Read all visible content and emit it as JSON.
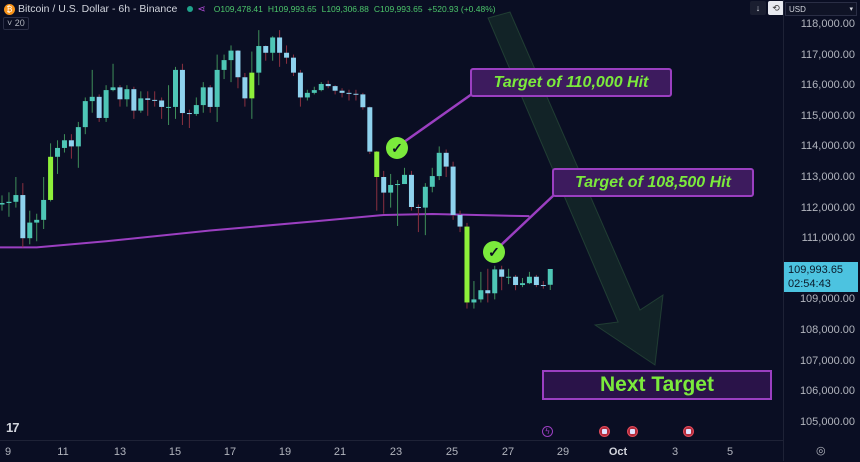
{
  "header": {
    "title": "Bitcoin / U.S. Dollar - 6h - Binance",
    "open_label": "O",
    "open": "109,478.41",
    "high_label": "H",
    "high": "109,993.65",
    "low_label": "L",
    "low": "109,306.88",
    "close_label": "C",
    "close": "109,993.65",
    "change": "+520.93 (+0.48%)",
    "indicator_count": "20"
  },
  "toolbar": {
    "currency": "USD",
    "down_icon": "↓",
    "sync_icon": "⟲"
  },
  "price_axis": {
    "labels": [
      "118,000.00",
      "117,000.00",
      "116,000.00",
      "115,000.00",
      "114,000.00",
      "113,000.00",
      "112,000.00",
      "111,000.00",
      "109,000.00",
      "108,000.00",
      "107,000.00",
      "106,000.00",
      "105,000.00"
    ],
    "current_price": "109,993.65",
    "countdown": "02:54:43"
  },
  "time_axis": {
    "labels": [
      "9",
      "11",
      "13",
      "15",
      "17",
      "19",
      "21",
      "23",
      "25",
      "27",
      "29",
      "Oct",
      "3",
      "5"
    ]
  },
  "annotations": {
    "target1": "Target of 110,000 Hit",
    "target2": "Target of 108,500 Hit",
    "next": "Next Target"
  },
  "colors": {
    "up": "#4ec6b6",
    "down": "#8fd2ee",
    "highlight": "#8ef03a",
    "ma": "#9b3fc1",
    "accent": "#7bea3c",
    "price_tag": "#4cc3e0"
  },
  "chart_data": {
    "type": "candlestick",
    "symbol": "BTC/USD",
    "interval": "6h",
    "ylim": [
      104500,
      118500
    ],
    "y_ticks": [
      118000,
      117000,
      116000,
      115000,
      114000,
      113000,
      112000,
      111000,
      109000,
      108000,
      107000,
      106000,
      105000
    ],
    "highlighted": [
      7,
      36,
      54,
      67
    ],
    "candles": [
      [
        112100,
        112400,
        111900,
        112150
      ],
      [
        112150,
        112500,
        111700,
        112190
      ],
      [
        112190,
        113000,
        112000,
        112410
      ],
      [
        112410,
        112800,
        110700,
        111000
      ],
      [
        111000,
        111900,
        110800,
        111510
      ],
      [
        111510,
        111800,
        110900,
        111600
      ],
      [
        111600,
        113000,
        111300,
        112250
      ],
      [
        112250,
        114100,
        112200,
        113660
      ],
      [
        113660,
        114200,
        113100,
        113950
      ],
      [
        113950,
        114400,
        113800,
        114200
      ],
      [
        114200,
        114400,
        113600,
        114000
      ],
      [
        114000,
        114800,
        113300,
        114630
      ],
      [
        114630,
        115600,
        114400,
        115480
      ],
      [
        115480,
        116500,
        115100,
        115620
      ],
      [
        115620,
        115700,
        114800,
        114930
      ],
      [
        114930,
        116000,
        114800,
        115840
      ],
      [
        115840,
        116700,
        115800,
        115930
      ],
      [
        115930,
        116000,
        115300,
        115540
      ],
      [
        115540,
        116000,
        115300,
        115870
      ],
      [
        115870,
        115950,
        114900,
        115170
      ],
      [
        115170,
        115800,
        115100,
        115570
      ],
      [
        115570,
        115800,
        115000,
        115520
      ],
      [
        115520,
        115800,
        115300,
        115500
      ],
      [
        115500,
        115600,
        114900,
        115290
      ],
      [
        115290,
        116000,
        114700,
        115290
      ],
      [
        115290,
        116600,
        114900,
        116500
      ],
      [
        116500,
        116700,
        114700,
        115090
      ],
      [
        115090,
        115200,
        114600,
        115060
      ],
      [
        115060,
        115600,
        115000,
        115350
      ],
      [
        115350,
        116100,
        115100,
        115930
      ],
      [
        115930,
        116000,
        115100,
        115290
      ],
      [
        115290,
        117000,
        114800,
        116500
      ],
      [
        116500,
        117000,
        116200,
        116820
      ],
      [
        116820,
        117300,
        116100,
        117130
      ],
      [
        117130,
        117150,
        115900,
        116260
      ],
      [
        116260,
        116400,
        115300,
        115570
      ],
      [
        115570,
        117100,
        114900,
        116410
      ],
      [
        116410,
        117800,
        116000,
        117280
      ],
      [
        117280,
        117300,
        116800,
        117060
      ],
      [
        117060,
        117600,
        116800,
        117560
      ],
      [
        117560,
        117800,
        116600,
        117060
      ],
      [
        117060,
        117300,
        116700,
        116900
      ],
      [
        116900,
        117000,
        116300,
        116410
      ],
      [
        116410,
        116500,
        115300,
        115600
      ],
      [
        115600,
        115850,
        115500,
        115750
      ],
      [
        115750,
        115950,
        115700,
        115840
      ],
      [
        115840,
        116100,
        115800,
        116040
      ],
      [
        116040,
        116150,
        115900,
        115970
      ],
      [
        115970,
        116000,
        115700,
        115820
      ],
      [
        115820,
        115900,
        115600,
        115750
      ],
      [
        115750,
        115850,
        115500,
        115720
      ],
      [
        115720,
        115850,
        115500,
        115700
      ],
      [
        115700,
        115750,
        115200,
        115280
      ],
      [
        115280,
        115300,
        113750,
        113830
      ],
      [
        113830,
        113850,
        111900,
        113000
      ],
      [
        113000,
        113200,
        111800,
        112490
      ],
      [
        112490,
        113100,
        112000,
        112740
      ],
      [
        112740,
        112900,
        111400,
        112770
      ],
      [
        112770,
        113300,
        112800,
        113070
      ],
      [
        113070,
        113200,
        111900,
        112020
      ],
      [
        112020,
        112100,
        111200,
        112000
      ],
      [
        112000,
        112800,
        111100,
        112680
      ],
      [
        112680,
        113300,
        112500,
        113030
      ],
      [
        113030,
        114000,
        112900,
        113790
      ],
      [
        113790,
        113900,
        113000,
        113340
      ],
      [
        113340,
        113500,
        111600,
        111760
      ],
      [
        111760,
        111900,
        111200,
        111380
      ],
      [
        111380,
        111500,
        108700,
        108900
      ],
      [
        108900,
        109600,
        108700,
        109000
      ],
      [
        109000,
        109900,
        108900,
        109300
      ],
      [
        109300,
        110000,
        108900,
        109200
      ],
      [
        109200,
        110100,
        109000,
        109980
      ],
      [
        109980,
        110100,
        109300,
        109740
      ],
      [
        109740,
        110000,
        109500,
        109740
      ],
      [
        109740,
        109800,
        109300,
        109470
      ],
      [
        109470,
        109700,
        109400,
        109530
      ],
      [
        109530,
        109900,
        109500,
        109740
      ],
      [
        109740,
        109800,
        109400,
        109470
      ],
      [
        109470,
        109600,
        109350,
        109450
      ],
      [
        109478,
        109994,
        109307,
        109994
      ]
    ],
    "moving_average": [
      [
        0,
        110700
      ],
      [
        5,
        110700
      ],
      [
        15,
        110900
      ],
      [
        30,
        111250
      ],
      [
        45,
        111550
      ],
      [
        55,
        111760
      ],
      [
        62,
        111790
      ],
      [
        66,
        111770
      ],
      [
        76,
        111720
      ]
    ]
  }
}
